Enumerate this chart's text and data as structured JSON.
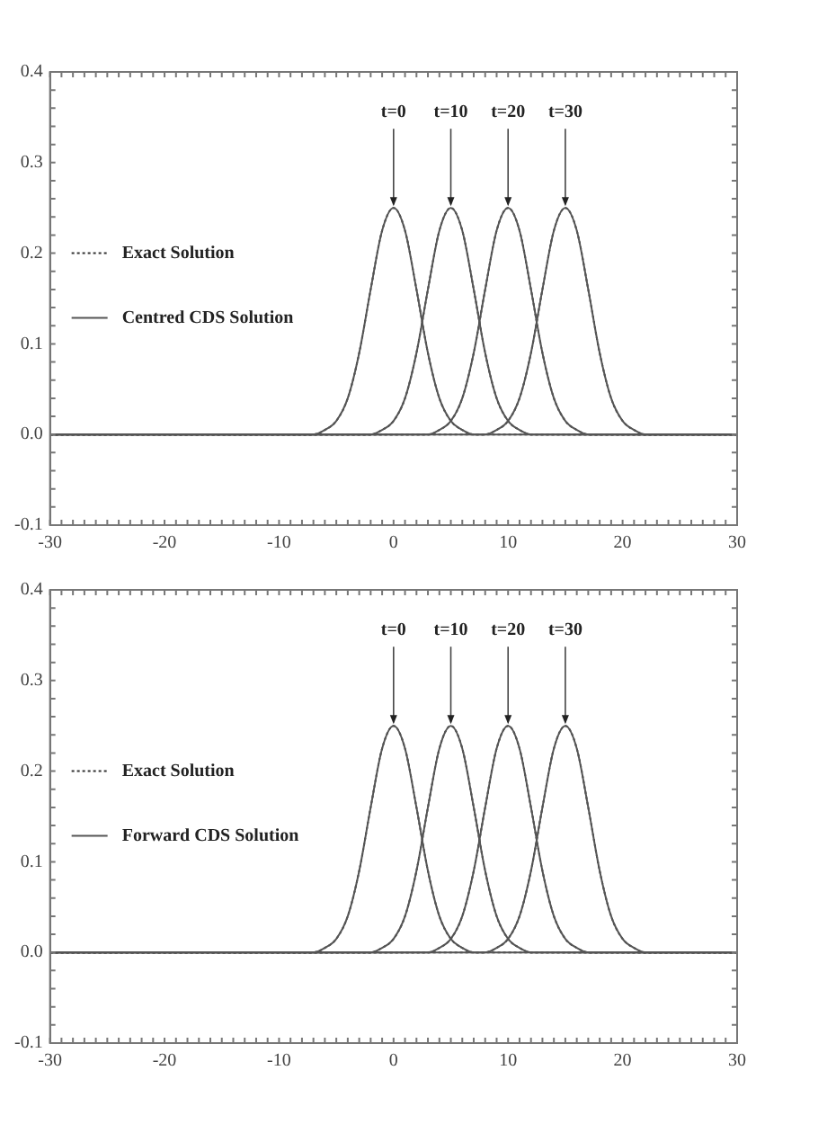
{
  "chart_data": [
    {
      "type": "line",
      "legend": "left",
      "xlim": [
        -30,
        30
      ],
      "ylim": [
        -0.1,
        0.4
      ],
      "grid": false,
      "marker": "none",
      "xticks": [
        -30,
        -20,
        -10,
        0,
        10,
        20,
        30
      ],
      "yticks": [
        -0.1,
        {
          "value": 0,
          "label": "0.0"
        },
        0.1,
        0.2,
        0.3,
        0.4
      ],
      "annotations": [
        {
          "text": "t=0",
          "x": 0,
          "y": 0.25
        },
        {
          "text": "t=10",
          "x": 5,
          "y": 0.25
        },
        {
          "text": "t=20",
          "x": 10,
          "y": 0.25
        },
        {
          "text": "t=30",
          "x": 15,
          "y": 0.25
        }
      ],
      "series": [
        {
          "name": "Centred CDS Solution",
          "color": "#555555",
          "line_style": "solid",
          "x": [
            -30,
            -8,
            -7,
            -6,
            -5,
            -4,
            -3,
            -2,
            -1,
            0,
            1,
            2,
            3,
            4,
            5,
            6,
            7,
            8,
            30
          ],
          "values": [
            0,
            0,
            0,
            0.005,
            0.015,
            0.04,
            0.09,
            0.16,
            0.225,
            0.25,
            0.225,
            0.16,
            0.09,
            0.04,
            0.015,
            0.005,
            0,
            0,
            0
          ]
        },
        {
          "color": "#555555",
          "line_style": "solid",
          "x": [
            -30,
            -3,
            -2,
            -1,
            0,
            1,
            2,
            3,
            4,
            5,
            6,
            7,
            8,
            9,
            10,
            11,
            12,
            13,
            30
          ],
          "values": [
            0,
            0,
            0,
            0.005,
            0.015,
            0.04,
            0.09,
            0.16,
            0.225,
            0.25,
            0.225,
            0.16,
            0.09,
            0.04,
            0.015,
            0.005,
            0,
            0,
            0
          ]
        },
        {
          "color": "#555555",
          "line_style": "solid",
          "x": [
            -30,
            2,
            3,
            4,
            5,
            6,
            7,
            8,
            9,
            10,
            11,
            12,
            13,
            14,
            15,
            16,
            17,
            18,
            30
          ],
          "values": [
            0,
            0,
            0,
            0.005,
            0.015,
            0.04,
            0.09,
            0.16,
            0.225,
            0.25,
            0.225,
            0.16,
            0.09,
            0.04,
            0.015,
            0.005,
            0,
            0,
            0
          ]
        },
        {
          "color": "#555555",
          "line_style": "solid",
          "x": [
            -30,
            7,
            8,
            9,
            10,
            11,
            12,
            13,
            14,
            15,
            16,
            17,
            18,
            19,
            20,
            21,
            22,
            23,
            30
          ],
          "values": [
            0,
            0,
            0,
            0.005,
            0.015,
            0.04,
            0.09,
            0.16,
            0.225,
            0.25,
            0.225,
            0.16,
            0.09,
            0.04,
            0.015,
            0.005,
            0,
            0,
            0
          ]
        },
        {
          "name": "Exact Solution",
          "color": "#333333",
          "line_style": "dotted",
          "x": [
            -30,
            -8,
            -7,
            -6,
            -5,
            -4,
            -3,
            -2,
            -1,
            0,
            1,
            2,
            3,
            4,
            5,
            6,
            7,
            8,
            30
          ],
          "values": [
            0,
            0,
            0,
            0.005,
            0.015,
            0.04,
            0.09,
            0.16,
            0.225,
            0.25,
            0.225,
            0.16,
            0.09,
            0.04,
            0.015,
            0.005,
            0,
            0,
            0
          ]
        },
        {
          "color": "#333333",
          "line_style": "dotted",
          "x": [
            -30,
            -3,
            -2,
            -1,
            0,
            1,
            2,
            3,
            4,
            5,
            6,
            7,
            8,
            9,
            10,
            11,
            12,
            13,
            30
          ],
          "values": [
            0,
            0,
            0,
            0.005,
            0.015,
            0.04,
            0.09,
            0.16,
            0.225,
            0.25,
            0.225,
            0.16,
            0.09,
            0.04,
            0.015,
            0.005,
            0,
            0,
            0
          ]
        },
        {
          "color": "#333333",
          "line_style": "dotted",
          "x": [
            -30,
            2,
            3,
            4,
            5,
            6,
            7,
            8,
            9,
            10,
            11,
            12,
            13,
            14,
            15,
            16,
            17,
            18,
            30
          ],
          "values": [
            0,
            0,
            0,
            0.005,
            0.015,
            0.04,
            0.09,
            0.16,
            0.225,
            0.25,
            0.225,
            0.16,
            0.09,
            0.04,
            0.015,
            0.005,
            0,
            0,
            0
          ]
        },
        {
          "color": "#333333",
          "line_style": "dotted",
          "x": [
            -30,
            7,
            8,
            9,
            10,
            11,
            12,
            13,
            14,
            15,
            16,
            17,
            18,
            19,
            20,
            21,
            22,
            23,
            30
          ],
          "values": [
            0,
            0,
            0,
            0.005,
            0.015,
            0.04,
            0.09,
            0.16,
            0.225,
            0.25,
            0.225,
            0.16,
            0.09,
            0.04,
            0.015,
            0.005,
            0,
            0,
            0
          ]
        }
      ]
    },
    {
      "type": "line",
      "legend": "left",
      "xlim": [
        -30,
        30
      ],
      "ylim": [
        -0.1,
        0.4
      ],
      "grid": false,
      "marker": "none",
      "xticks": [
        -30,
        -20,
        -10,
        0,
        10,
        20,
        30
      ],
      "yticks": [
        -0.1,
        {
          "value": 0,
          "label": "0.0"
        },
        0.1,
        0.2,
        0.3,
        0.4
      ],
      "annotations": [
        {
          "text": "t=0",
          "x": 0,
          "y": 0.25
        },
        {
          "text": "t=10",
          "x": 5,
          "y": 0.25
        },
        {
          "text": "t=20",
          "x": 10,
          "y": 0.25
        },
        {
          "text": "t=30",
          "x": 15,
          "y": 0.25
        }
      ],
      "series": [
        {
          "name": "Forward CDS Solution",
          "color": "#555555",
          "line_style": "solid",
          "x": [
            -30,
            -8,
            -7,
            -6,
            -5,
            -4,
            -3,
            -2,
            -1,
            0,
            1,
            2,
            3,
            4,
            5,
            6,
            7,
            8,
            30
          ],
          "values": [
            0,
            0,
            0,
            0.005,
            0.015,
            0.04,
            0.09,
            0.16,
            0.225,
            0.25,
            0.225,
            0.16,
            0.09,
            0.04,
            0.015,
            0.005,
            0,
            0,
            0
          ]
        },
        {
          "color": "#555555",
          "line_style": "solid",
          "x": [
            -30,
            -3,
            -2,
            -1,
            0,
            1,
            2,
            3,
            4,
            5,
            6,
            7,
            8,
            9,
            10,
            11,
            12,
            13,
            30
          ],
          "values": [
            0,
            0,
            0,
            0.005,
            0.015,
            0.04,
            0.09,
            0.16,
            0.225,
            0.25,
            0.225,
            0.16,
            0.09,
            0.04,
            0.015,
            0.005,
            0,
            0,
            0
          ]
        },
        {
          "color": "#555555",
          "line_style": "solid",
          "x": [
            -30,
            2,
            3,
            4,
            5,
            6,
            7,
            8,
            9,
            10,
            11,
            12,
            13,
            14,
            15,
            16,
            17,
            18,
            30
          ],
          "values": [
            0,
            0,
            0,
            0.005,
            0.015,
            0.04,
            0.09,
            0.16,
            0.225,
            0.25,
            0.225,
            0.16,
            0.09,
            0.04,
            0.015,
            0.005,
            0,
            0,
            0
          ]
        },
        {
          "color": "#555555",
          "line_style": "solid",
          "x": [
            -30,
            7,
            8,
            9,
            10,
            11,
            12,
            13,
            14,
            15,
            16,
            17,
            18,
            19,
            20,
            21,
            22,
            23,
            30
          ],
          "values": [
            0,
            0,
            0,
            0.005,
            0.015,
            0.04,
            0.09,
            0.16,
            0.225,
            0.25,
            0.225,
            0.16,
            0.09,
            0.04,
            0.015,
            0.005,
            0,
            0,
            0
          ]
        },
        {
          "name": "Exact Solution",
          "color": "#333333",
          "line_style": "dotted",
          "x": [
            -30,
            -8,
            -7,
            -6,
            -5,
            -4,
            -3,
            -2,
            -1,
            0,
            1,
            2,
            3,
            4,
            5,
            6,
            7,
            8,
            30
          ],
          "values": [
            0,
            0,
            0,
            0.005,
            0.015,
            0.04,
            0.09,
            0.16,
            0.225,
            0.25,
            0.225,
            0.16,
            0.09,
            0.04,
            0.015,
            0.005,
            0,
            0,
            0
          ]
        },
        {
          "color": "#333333",
          "line_style": "dotted",
          "x": [
            -30,
            -3,
            -2,
            -1,
            0,
            1,
            2,
            3,
            4,
            5,
            6,
            7,
            8,
            9,
            10,
            11,
            12,
            13,
            30
          ],
          "values": [
            0,
            0,
            0,
            0.005,
            0.015,
            0.04,
            0.09,
            0.16,
            0.225,
            0.25,
            0.225,
            0.16,
            0.09,
            0.04,
            0.015,
            0.005,
            0,
            0,
            0
          ]
        },
        {
          "color": "#333333",
          "line_style": "dotted",
          "x": [
            -30,
            2,
            3,
            4,
            5,
            6,
            7,
            8,
            9,
            10,
            11,
            12,
            13,
            14,
            15,
            16,
            17,
            18,
            30
          ],
          "values": [
            0,
            0,
            0,
            0.005,
            0.015,
            0.04,
            0.09,
            0.16,
            0.225,
            0.25,
            0.225,
            0.16,
            0.09,
            0.04,
            0.015,
            0.005,
            0,
            0,
            0
          ]
        },
        {
          "color": "#333333",
          "line_style": "dotted",
          "x": [
            -30,
            7,
            8,
            9,
            10,
            11,
            12,
            13,
            14,
            15,
            16,
            17,
            18,
            19,
            20,
            21,
            22,
            23,
            30
          ],
          "values": [
            0,
            0,
            0,
            0.005,
            0.015,
            0.04,
            0.09,
            0.16,
            0.225,
            0.25,
            0.225,
            0.16,
            0.09,
            0.04,
            0.015,
            0.005,
            0,
            0,
            0
          ]
        }
      ]
    }
  ]
}
